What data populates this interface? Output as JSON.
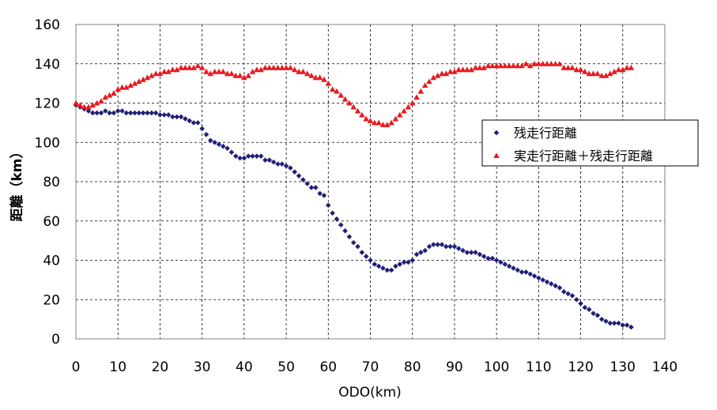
{
  "chart_data": {
    "type": "scatter",
    "xlabel": "ODO(km)",
    "ylabel": "距離（km）",
    "xlim": [
      0,
      140
    ],
    "ylim": [
      0,
      160
    ],
    "x_ticks": [
      "0",
      "10",
      "20",
      "30",
      "40",
      "50",
      "60",
      "70",
      "80",
      "90",
      "100",
      "110",
      "120",
      "130",
      "140"
    ],
    "y_ticks": [
      "0",
      "20",
      "40",
      "60",
      "80",
      "100",
      "120",
      "140",
      "160"
    ],
    "grid": true,
    "legend_position": "right",
    "series": [
      {
        "name": "残走行距離",
        "color": "#1f1f78",
        "marker": "diamond",
        "x": [
          0,
          1,
          2,
          3,
          4,
          5,
          6,
          7,
          8,
          9,
          10,
          11,
          12,
          13,
          14,
          15,
          16,
          17,
          18,
          19,
          20,
          21,
          22,
          23,
          24,
          25,
          26,
          27,
          28,
          29,
          30,
          31,
          32,
          33,
          34,
          35,
          36,
          37,
          38,
          39,
          40,
          41,
          42,
          43,
          44,
          45,
          46,
          47,
          48,
          49,
          50,
          51,
          52,
          53,
          54,
          55,
          56,
          57,
          58,
          59,
          60,
          61,
          62,
          63,
          64,
          65,
          66,
          67,
          68,
          69,
          70,
          71,
          72,
          73,
          74,
          75,
          76,
          77,
          78,
          79,
          80,
          81,
          82,
          83,
          84,
          85,
          86,
          87,
          88,
          89,
          90,
          91,
          92,
          93,
          94,
          95,
          96,
          97,
          98,
          99,
          100,
          101,
          102,
          103,
          104,
          105,
          106,
          107,
          108,
          109,
          110,
          111,
          112,
          113,
          114,
          115,
          116,
          117,
          118,
          119,
          120,
          121,
          122,
          123,
          124,
          125,
          126,
          127,
          128,
          129,
          130,
          131,
          132
        ],
        "y": [
          119,
          118,
          117,
          116,
          115,
          115,
          115,
          116,
          115,
          115,
          116,
          116,
          115,
          115,
          115,
          115,
          115,
          115,
          115,
          115,
          114,
          114,
          114,
          113,
          113,
          113,
          112,
          111,
          110,
          110,
          107,
          104,
          101,
          100,
          99,
          98,
          97,
          95,
          93,
          92,
          92,
          93,
          93,
          93,
          93,
          91,
          91,
          90,
          89,
          89,
          88,
          87,
          85,
          83,
          81,
          79,
          77,
          77,
          74,
          73,
          68,
          64,
          61,
          58,
          55,
          52,
          49,
          47,
          44,
          42,
          40,
          38,
          37,
          36,
          35,
          35,
          37,
          38,
          39,
          39,
          40,
          43,
          44,
          45,
          47,
          48,
          48,
          48,
          47,
          47,
          47,
          46,
          45,
          44,
          44,
          44,
          43,
          42,
          41,
          41,
          40,
          39,
          38,
          37,
          36,
          35,
          34,
          34,
          33,
          32,
          31,
          30,
          29,
          28,
          27,
          26,
          24,
          23,
          22,
          20,
          18,
          16,
          15,
          13,
          12,
          10,
          9,
          8,
          8,
          8,
          7,
          7,
          6
        ]
      },
      {
        "name": "実走行距離＋残走行距離",
        "color": "#e8191e",
        "marker": "triangle",
        "x": [
          0,
          1,
          2,
          3,
          4,
          5,
          6,
          7,
          8,
          9,
          10,
          11,
          12,
          13,
          14,
          15,
          16,
          17,
          18,
          19,
          20,
          21,
          22,
          23,
          24,
          25,
          26,
          27,
          28,
          29,
          30,
          31,
          32,
          33,
          34,
          35,
          36,
          37,
          38,
          39,
          40,
          41,
          42,
          43,
          44,
          45,
          46,
          47,
          48,
          49,
          50,
          51,
          52,
          53,
          54,
          55,
          56,
          57,
          58,
          59,
          60,
          61,
          62,
          63,
          64,
          65,
          66,
          67,
          68,
          69,
          70,
          71,
          72,
          73,
          74,
          75,
          76,
          77,
          78,
          79,
          80,
          81,
          82,
          83,
          84,
          85,
          86,
          87,
          88,
          89,
          90,
          91,
          92,
          93,
          94,
          95,
          96,
          97,
          98,
          99,
          100,
          101,
          102,
          103,
          104,
          105,
          106,
          107,
          108,
          109,
          110,
          111,
          112,
          113,
          114,
          115,
          116,
          117,
          118,
          119,
          120,
          121,
          122,
          123,
          124,
          125,
          126,
          127,
          128,
          129,
          130,
          131,
          132
        ],
        "y": [
          120,
          119,
          118,
          118,
          119,
          120,
          121,
          123,
          124,
          125,
          127,
          128,
          128,
          129,
          130,
          131,
          132,
          133,
          134,
          135,
          135,
          136,
          136,
          137,
          137,
          138,
          138,
          138,
          138,
          139,
          138,
          136,
          135,
          136,
          136,
          136,
          135,
          135,
          134,
          134,
          133,
          134,
          136,
          137,
          137,
          138,
          138,
          138,
          138,
          138,
          138,
          138,
          137,
          136,
          136,
          135,
          134,
          133,
          133,
          132,
          130,
          127,
          126,
          124,
          122,
          120,
          118,
          116,
          114,
          112,
          111,
          110,
          110,
          109,
          109,
          110,
          112,
          114,
          116,
          118,
          120,
          123,
          126,
          129,
          131,
          133,
          134,
          135,
          135,
          136,
          136,
          137,
          137,
          137,
          137,
          138,
          138,
          138,
          139,
          139,
          139,
          139,
          139,
          139,
          139,
          139,
          139,
          140,
          139,
          140,
          140,
          140,
          140,
          140,
          140,
          140,
          138,
          138,
          138,
          137,
          137,
          136,
          135,
          135,
          135,
          134,
          134,
          135,
          136,
          137,
          137,
          138,
          138
        ]
      }
    ]
  }
}
